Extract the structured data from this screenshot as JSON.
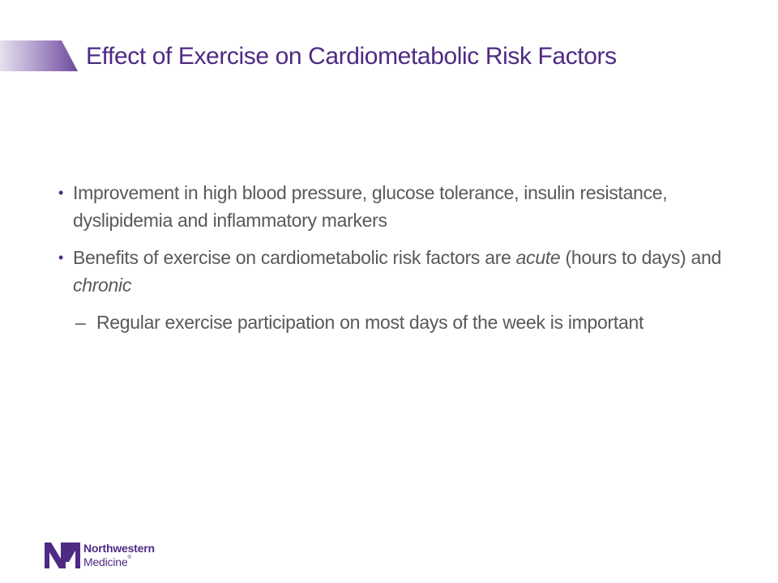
{
  "slide": {
    "title": "Effect of Exercise on Cardiometabolic Risk Factors"
  },
  "content": {
    "bullets": [
      {
        "text": "Improvement in high blood pressure, glucose tolerance, insulin resistance, dyslipidemia and inflammatory markers"
      },
      {
        "text_before_acute": "Benefits of exercise on cardiometabolic risk factors are ",
        "acute": "acute",
        "text_between": " (hours to days) and ",
        "chronic": "chronic",
        "sub_bullets": [
          {
            "text": "Regular exercise participation on most days of the week is important"
          }
        ]
      }
    ]
  },
  "branding": {
    "logo_line1": "Northwestern",
    "logo_line2": "Medicine",
    "registered_mark": "®",
    "brand_color": "#4e2a84",
    "accent_gradient_start": "#e6e0ef",
    "body_text_color": "#58595b"
  },
  "icons": {
    "bullet_marker": "•",
    "sub_bullet_marker": "–"
  }
}
